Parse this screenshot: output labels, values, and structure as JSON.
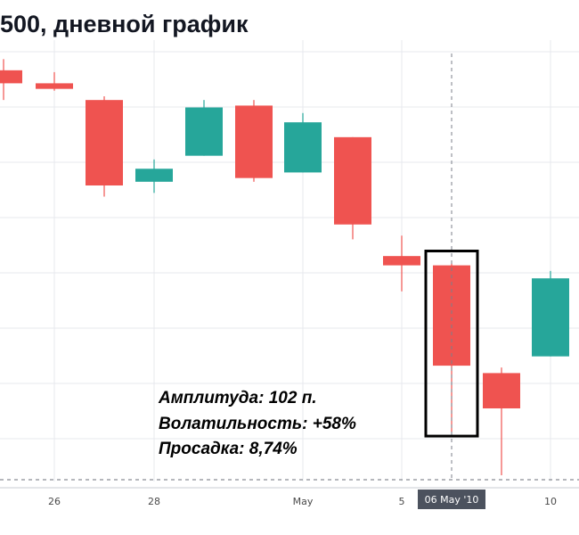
{
  "chart_data": {
    "type": "candlestick",
    "title": "500, дневной график",
    "x_ticks": [
      "26",
      "28",
      "May",
      "5",
      "10"
    ],
    "candles": [
      {
        "o": 1218,
        "h": 1224,
        "l": 1202,
        "c": 1211
      },
      {
        "o": 1211,
        "h": 1217,
        "l": 1207,
        "c": 1208
      },
      {
        "o": 1202,
        "h": 1204,
        "l": 1150,
        "c": 1156
      },
      {
        "o": 1158,
        "h": 1170,
        "l": 1152,
        "c": 1165
      },
      {
        "o": 1172,
        "h": 1202,
        "l": 1172,
        "c": 1198
      },
      {
        "o": 1199,
        "h": 1202,
        "l": 1158,
        "c": 1160
      },
      {
        "o": 1163,
        "h": 1195,
        "l": 1163,
        "c": 1190
      },
      {
        "o": 1182,
        "h": 1182,
        "l": 1127,
        "c": 1135
      },
      {
        "o": 1118,
        "h": 1129,
        "l": 1099,
        "c": 1113
      },
      {
        "o": 1113,
        "h": 1114,
        "l": 1023,
        "c": 1059
      },
      {
        "o": 1055,
        "h": 1058,
        "l": 1000,
        "c": 1036
      },
      {
        "o": 1064,
        "h": 1110,
        "l": 1064,
        "c": 1106
      }
    ],
    "highlight_index": 9,
    "crosshair_label": "06 May '10",
    "annotations": [
      "Амплитуда: 102 п.",
      "Волатильность: +58%",
      "Просадка: 8,74%"
    ],
    "colors": {
      "up": "#26a69a",
      "down": "#ef5350",
      "grid": "#e7e9ee"
    }
  }
}
